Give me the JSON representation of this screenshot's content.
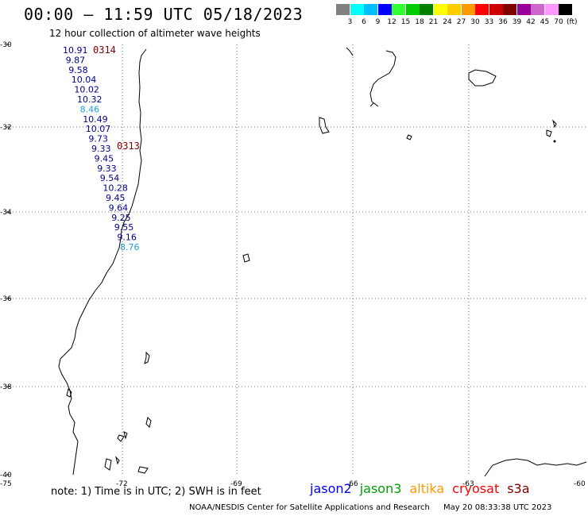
{
  "header": {
    "title": "00:00 — 11:59 UTC 05/18/2023",
    "subtitle": "12 hour collection of altimeter wave heights"
  },
  "colorbar": {
    "colors": [
      "#808080",
      "#00ffff",
      "#00bfff",
      "#0000ff",
      "#33ff33",
      "#00cc00",
      "#008000",
      "#ffff00",
      "#ffcc00",
      "#ff9900",
      "#ff0000",
      "#cc0000",
      "#800000",
      "#990099",
      "#cc66cc",
      "#ff99ff",
      "#000000"
    ],
    "labels": [
      "3",
      "6",
      "9",
      "12",
      "15",
      "18",
      "21",
      "24",
      "27",
      "30",
      "33",
      "36",
      "39",
      "42",
      "45",
      "70"
    ],
    "unit": "(ft)"
  },
  "map": {
    "lat_labels": [
      "-30",
      "-32",
      "-34",
      "-36",
      "-38",
      "-40"
    ],
    "lon_labels": [
      "-75",
      "-72",
      "-69",
      "-66",
      "-63",
      "-60"
    ],
    "pass_labels": [
      {
        "text": "0314",
        "color": "#800000"
      },
      {
        "text": "0313",
        "color": "#800000"
      }
    ],
    "swh_values": [
      {
        "v": "10.91",
        "color": "#00008b"
      },
      {
        "v": "9.87",
        "color": "#00008b"
      },
      {
        "v": "9.58",
        "color": "#00008b"
      },
      {
        "v": "10.04",
        "color": "#00008b"
      },
      {
        "v": "10.02",
        "color": "#00008b"
      },
      {
        "v": "10.32",
        "color": "#00008b"
      },
      {
        "v": "8.46",
        "color": "#1fa0d8"
      },
      {
        "v": "10.49",
        "color": "#00008b"
      },
      {
        "v": "10.07",
        "color": "#00008b"
      },
      {
        "v": "9.73",
        "color": "#00008b"
      },
      {
        "v": "9.33",
        "color": "#00008b"
      },
      {
        "v": "9.45",
        "color": "#00008b"
      },
      {
        "v": "9.33",
        "color": "#00008b"
      },
      {
        "v": "9.54",
        "color": "#00008b"
      },
      {
        "v": "10.28",
        "color": "#00008b"
      },
      {
        "v": "9.45",
        "color": "#00008b"
      },
      {
        "v": "9.64",
        "color": "#00008b"
      },
      {
        "v": "9.25",
        "color": "#00008b"
      },
      {
        "v": "9.55",
        "color": "#00008b"
      },
      {
        "v": "9.16",
        "color": "#00008b"
      },
      {
        "v": "8.76",
        "color": "#1fa0d8"
      }
    ]
  },
  "note": "note: 1) Time is in UTC; 2) SWH is in feet",
  "legend": [
    {
      "name": "jason2",
      "color": "#0000ff"
    },
    {
      "name": "jason3",
      "color": "#00a000"
    },
    {
      "name": "altika",
      "color": "#ff9900"
    },
    {
      "name": "cryosat",
      "color": "#ff0000"
    },
    {
      "name": "s3a",
      "color": "#800000"
    }
  ],
  "footer": {
    "source": "NOAA/NESDIS Center for Satellite Applications and Research",
    "timestamp": "May 20 08:33:38 UTC 2023"
  }
}
